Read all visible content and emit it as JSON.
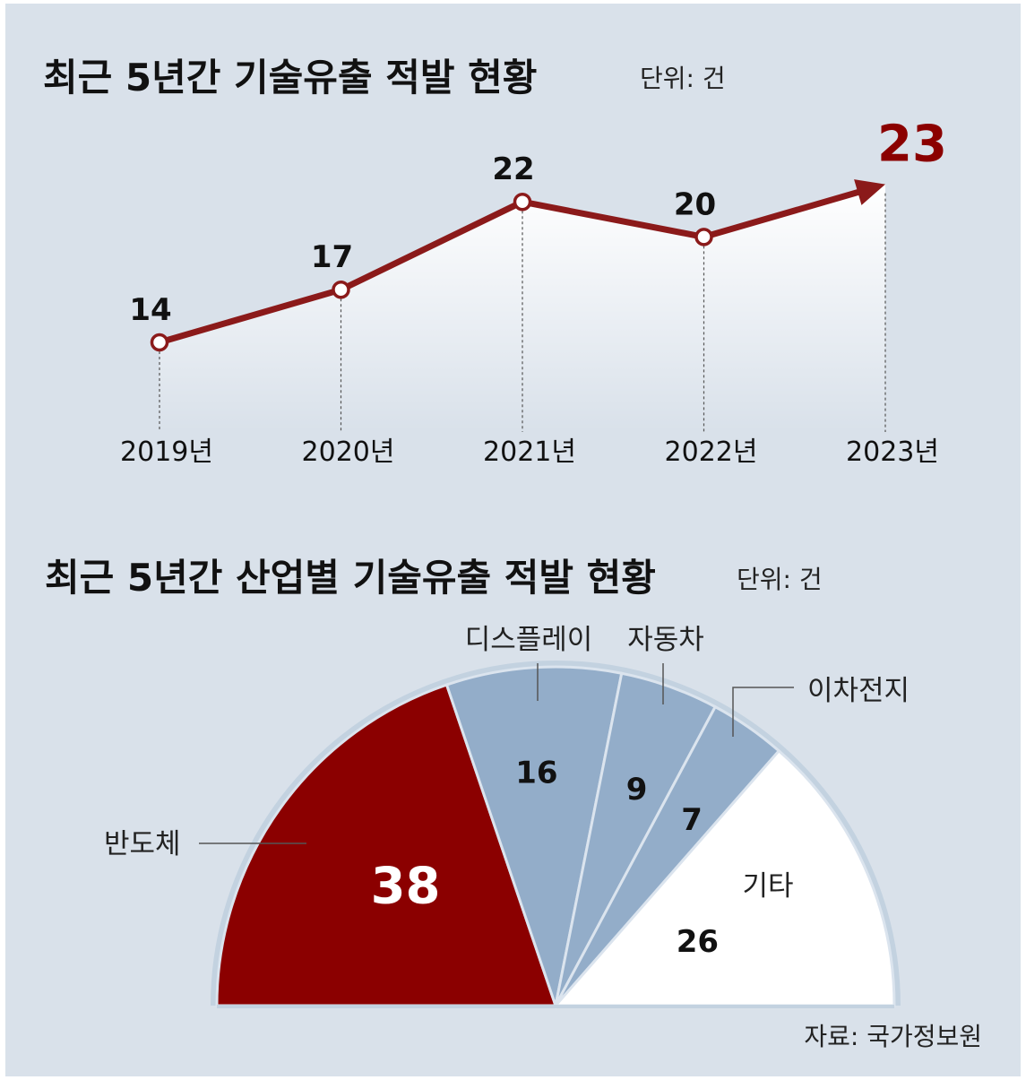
{
  "chart_data": [
    {
      "type": "line",
      "title": "최근 5년간 기술유출 적발 현황",
      "unit": "단위: 건",
      "x": [
        "2019년",
        "2020년",
        "2021년",
        "2022년",
        "2023년"
      ],
      "series": [
        {
          "values": [
            14,
            17,
            22,
            20,
            23
          ]
        }
      ],
      "colors": {
        "line": "#8b1a1a",
        "highlight": "#8b0000"
      }
    },
    {
      "type": "pie",
      "title": "최근 5년간 산업별 기술유출 적발 현황",
      "unit": "단위: 건",
      "categories": [
        "반도체",
        "디스플레이",
        "자동차",
        "이차전지",
        "기타"
      ],
      "values": [
        38,
        16,
        9,
        7,
        26
      ],
      "colors": [
        "#8b0000",
        "#93adc9",
        "#93adc9",
        "#93adc9",
        "#ffffff"
      ]
    }
  ],
  "source": "자료: 국가정보원"
}
